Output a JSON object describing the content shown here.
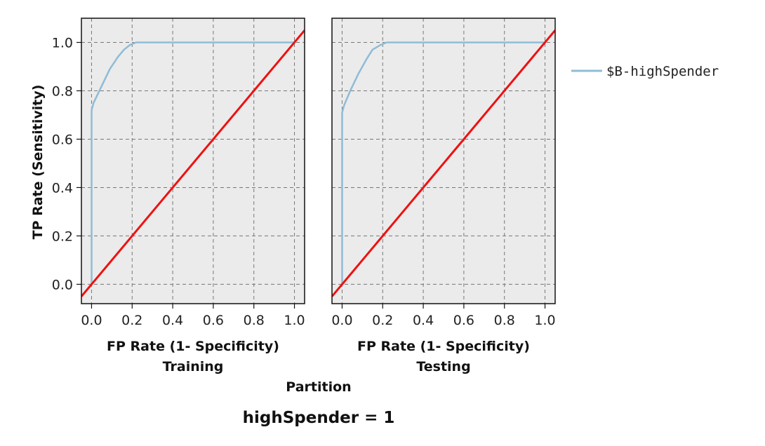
{
  "chart_data": {
    "type": "line",
    "title": "highSpender = 1",
    "facet_label": "Partition",
    "xlabel": "FP Rate (1- Specificity)",
    "ylabel": "TP Rate (Sensitivity)",
    "xlim": [
      -0.05,
      1.05
    ],
    "ylim": [
      -0.08,
      1.1
    ],
    "x_ticks": [
      "0.0",
      "0.2",
      "0.4",
      "0.6",
      "0.8",
      "1.0"
    ],
    "y_ticks": [
      "0.0",
      "0.2",
      "0.4",
      "0.6",
      "0.8",
      "1.0"
    ],
    "grid": true,
    "legend": {
      "position": "right",
      "entries": [
        "$B-highSpender"
      ]
    },
    "colors": {
      "roc": "#8fbcd6",
      "baseline": "#ee1111",
      "panel_bg": "#ebebeb",
      "grid": "#777777"
    },
    "panels": [
      {
        "name": "Training",
        "series": [
          {
            "name": "$B-highSpender",
            "x": [
              0,
              0,
              0.01,
              0.05,
              0.09,
              0.13,
              0.16,
              0.19,
              0.22,
              0.4,
              0.6,
              0.8,
              1.0
            ],
            "y": [
              0,
              0.72,
              0.75,
              0.82,
              0.89,
              0.94,
              0.97,
              0.99,
              1.0,
              1.0,
              1.0,
              1.0,
              1.0
            ]
          },
          {
            "name": "",
            "x": [
              -0.05,
              1.05
            ],
            "y": [
              -0.05,
              1.05
            ]
          }
        ]
      },
      {
        "name": "Testing",
        "series": [
          {
            "name": "$B-highSpender",
            "x": [
              0,
              0,
              0.01,
              0.04,
              0.08,
              0.12,
              0.15,
              0.19,
              0.22,
              0.4,
              0.6,
              0.8,
              1.0
            ],
            "y": [
              0,
              0.71,
              0.74,
              0.8,
              0.87,
              0.93,
              0.97,
              0.99,
              1.0,
              1.0,
              1.0,
              1.0,
              1.0
            ]
          },
          {
            "name": "",
            "x": [
              -0.05,
              1.05
            ],
            "y": [
              -0.05,
              1.05
            ]
          }
        ]
      }
    ]
  }
}
